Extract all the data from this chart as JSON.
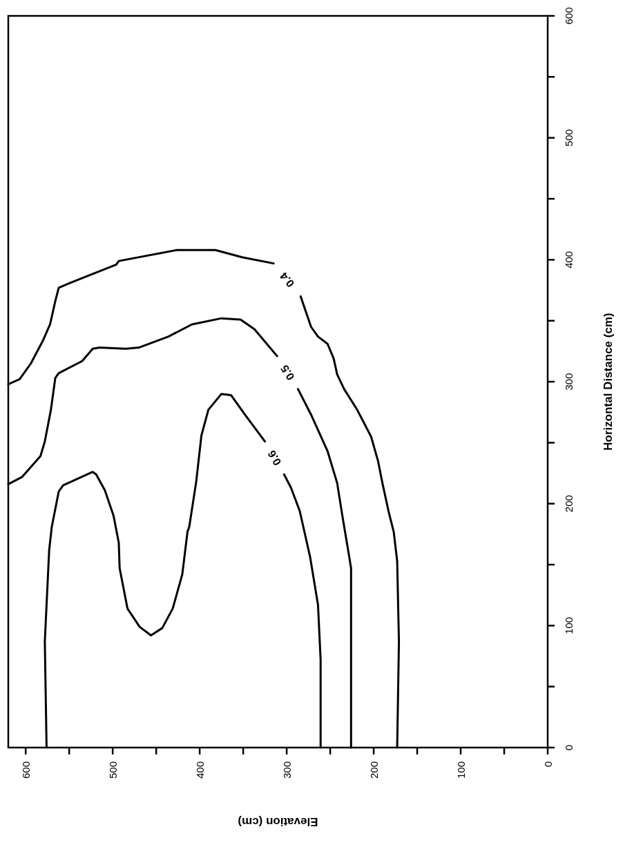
{
  "chart_data": {
    "type": "line",
    "xlabel": "Elevation (cm)",
    "ylabel": "Horizontal Distance (cm)",
    "xlim": [
      620,
      0
    ],
    "ylim": [
      0,
      600
    ],
    "xticks": [
      600,
      {
        "value": 550,
        "label": null
      },
      500,
      {
        "value": 450,
        "label": null
      },
      400,
      {
        "value": 350,
        "label": null
      },
      300,
      {
        "value": 250,
        "label": null
      },
      200,
      {
        "value": 150,
        "label": null
      },
      100,
      {
        "value": 50,
        "label": null
      },
      0
    ],
    "yticks": [
      0,
      {
        "value": 50,
        "label": null
      },
      100,
      {
        "value": 150,
        "label": null
      },
      200,
      {
        "value": 250,
        "label": null
      },
      300,
      {
        "value": 350,
        "label": null
      },
      400,
      {
        "value": 450,
        "label": null
      },
      500,
      {
        "value": 550,
        "label": null
      },
      600
    ],
    "series": [
      {
        "name": "0.4",
        "color": "#000000",
        "x": [
          620,
          607,
          594,
          580,
          572,
          566,
          562,
          549,
          496,
          493,
          426,
          382,
          351,
          315,
          null,
          284,
          272,
          264,
          253,
          246,
          242,
          234,
          219,
          203,
          195,
          190,
          183,
          177,
          173,
          171,
          173
        ],
        "values": [
          298,
          302,
          315,
          334,
          347,
          366,
          377,
          381,
          396,
          399,
          408,
          408,
          402,
          397,
          null,
          370,
          345,
          337,
          331,
          319,
          306,
          294,
          277,
          255,
          235,
          217,
          194,
          177,
          153,
          87,
          0
        ]
      },
      {
        "name": "0.5",
        "color": "#000000",
        "x": [
          620,
          604,
          583,
          578,
          571,
          566,
          562,
          535,
          523,
          515,
          485,
          470,
          436,
          409,
          375,
          353,
          337,
          311,
          null,
          287,
          272,
          253,
          242,
          236,
          228,
          226,
          226
        ],
        "values": [
          216,
          222,
          239,
          251,
          277,
          303,
          307,
          317,
          327,
          328,
          327,
          328,
          337,
          347,
          352,
          351,
          343,
          321,
          null,
          294,
          273,
          243,
          217,
          190,
          156,
          147,
          0
        ]
      },
      {
        "name": "0.6",
        "color": "#000000",
        "x": [
          576,
          578,
          573,
          570,
          562,
          557,
          523,
          519,
          509,
          499,
          493,
          492,
          483,
          469,
          456,
          443,
          431,
          420,
          414,
          412,
          404,
          398,
          390,
          375,
          364,
          348,
          325,
          null,
          303,
          295,
          285,
          273,
          264,
          261,
          261
        ],
        "values": [
          0,
          87,
          162,
          181,
          210,
          215,
          226,
          224,
          211,
          190,
          168,
          147,
          114,
          99,
          92,
          98,
          114,
          142,
          177,
          181,
          218,
          256,
          277,
          290,
          289,
          273,
          251,
          null,
          224,
          213,
          194,
          156,
          117,
          72,
          0
        ]
      }
    ]
  }
}
